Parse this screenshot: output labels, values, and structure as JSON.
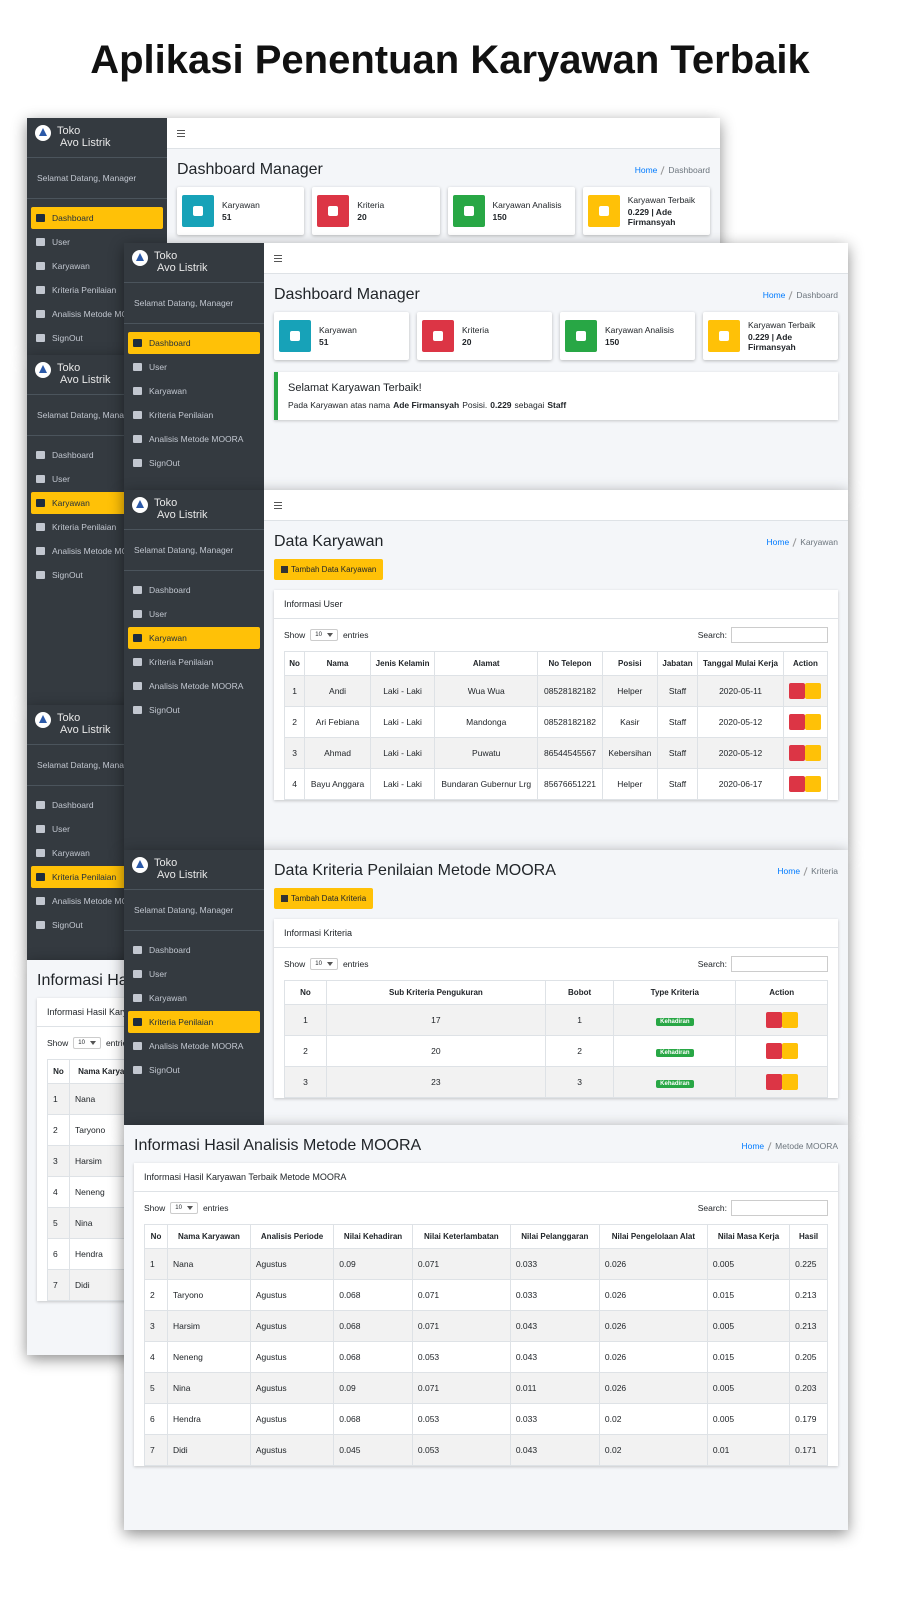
{
  "title": "Aplikasi Penentuan Karyawan Terbaik",
  "sidebar": {
    "brand": [
      "Toko",
      "Avo Listrik"
    ],
    "welcome": "Selamat Datang, Manager",
    "menu": [
      "Dashboard",
      "User",
      "Karyawan",
      "Kriteria Penilaian",
      "Analisis Metode MOORA",
      "SignOut"
    ]
  },
  "datatable": {
    "show": "Show",
    "length": "10",
    "entries": "entries",
    "search": "Search:"
  },
  "dashboard": {
    "heading": "Dashboard Manager",
    "breadcrumb": [
      "Home",
      "Dashboard"
    ],
    "cards": [
      {
        "label": "Karyawan",
        "value": "51"
      },
      {
        "label": "Kriteria",
        "value": "20"
      },
      {
        "label": "Karyawan Analisis",
        "value": "150"
      },
      {
        "label": "Karyawan Terbaik",
        "value": "0.229 | Ade Firmansyah"
      }
    ],
    "alert": {
      "title": "Selamat Karyawan Terbaik!",
      "text": "Pada Karyawan atas nama",
      "name": "Ade Firmansyah",
      "text2": "Posisi.",
      "score": "0.229",
      "text3": "sebagai",
      "position": "Staff"
    }
  },
  "karyawan": {
    "heading": "Data Karyawan",
    "breadcrumb": [
      "Home",
      "Karyawan"
    ],
    "button": "Tambah Data Karyawan",
    "card_title": "Informasi User",
    "columns": [
      "No",
      "Nama",
      "Jenis Kelamin",
      "Alamat",
      "No Telepon",
      "Posisi",
      "Jabatan",
      "Tanggal Mulai Kerja",
      "Action"
    ],
    "rows": [
      [
        1,
        "Andi",
        "Laki - Laki",
        "Wua Wua",
        "08528182182",
        "Helper",
        "Staff",
        "2020-05-11"
      ],
      [
        2,
        "Ari Febiana",
        "Laki - Laki",
        "Mandonga",
        "08528182182",
        "Kasir",
        "Staff",
        "2020-05-12"
      ],
      [
        3,
        "Ahmad",
        "Laki - Laki",
        "Puwatu",
        "86544545567",
        "Kebersihan",
        "Staff",
        "2020-05-12"
      ],
      [
        4,
        "Bayu Anggara",
        "Laki - Laki",
        "Bundaran Gubernur Lrg",
        "85676651221",
        "Helper",
        "Staff",
        "2020-06-17"
      ]
    ]
  },
  "kriteria": {
    "heading": "Data Kriteria Penilaian Metode MOORA",
    "breadcrumb": [
      "Home",
      "Kriteria"
    ],
    "button": "Tambah Data Kriteria",
    "card_title": "Informasi Kriteria",
    "columns": [
      "No",
      "Sub Kriteria Pengukuran",
      "Bobot",
      "Type Kriteria",
      "Action"
    ],
    "rows": [
      [
        1,
        17,
        1,
        "Kehadiran"
      ],
      [
        2,
        20,
        2,
        "Kehadiran"
      ],
      [
        3,
        23,
        3,
        "Kehadiran"
      ]
    ]
  },
  "hasil": {
    "heading": "Informasi Hasil Analisis Metode MOORA",
    "breadcrumb": [
      "Home",
      "Metode MOORA"
    ],
    "card_title": "Informasi Hasil Karyawan Terbaik Metode MOORA",
    "columns": [
      "No",
      "Nama Karyawan",
      "Analisis Periode",
      "Nilai Kehadiran",
      "Nilai Keterlambatan",
      "Nilai Pelanggaran",
      "Nilai Pengelolaan Alat",
      "Nilai Masa Kerja",
      "Hasil"
    ],
    "rows": [
      [
        1,
        "Nana",
        "Agustus",
        0.09,
        0.071,
        0.033,
        0.026,
        0.005,
        0.225
      ],
      [
        2,
        "Taryono",
        "Agustus",
        0.068,
        0.071,
        0.033,
        0.026,
        0.015,
        0.213
      ],
      [
        3,
        "Harsim",
        "Agustus",
        0.068,
        0.071,
        0.043,
        0.026,
        0.005,
        0.213
      ],
      [
        4,
        "Neneng",
        "Agustus",
        0.068,
        0.053,
        0.043,
        0.026,
        0.015,
        0.205
      ],
      [
        5,
        "Nina",
        "Agustus",
        0.09,
        0.071,
        0.011,
        0.026,
        0.005,
        0.203
      ],
      [
        6,
        "Hendra",
        "Agustus",
        0.068,
        0.053,
        0.033,
        0.02,
        0.005,
        0.179
      ],
      [
        7,
        "Didi",
        "Agustus",
        0.045,
        0.053,
        0.043,
        0.02,
        0.01,
        0.171
      ]
    ]
  }
}
